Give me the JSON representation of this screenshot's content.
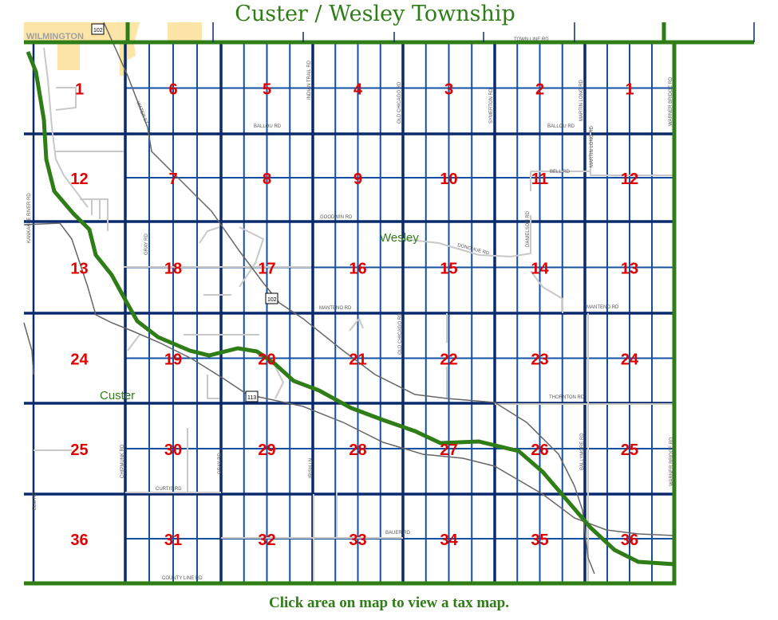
{
  "title": "Custer / Wesley Township",
  "footer": "Click area on map to view a tax map.",
  "colors": {
    "boundary": "#2e7d16",
    "section_label": "#e00000",
    "major_road": "#0a2a6e",
    "quarter_line": "#1450a0",
    "local_road": "#c8c8c8",
    "railroad": "#666666",
    "city_area": "#fde5a8"
  },
  "towns": {
    "wilmington": "WILMINGTON",
    "wesley": "Wesley",
    "custer": "Custer"
  },
  "highways": [
    "102",
    "102",
    "113"
  ],
  "roads": {
    "town_line": "TOWN LINE RD",
    "ballou_w": "BALLOU RD",
    "ballou_e": "BALLOU RD",
    "indian_trail": "INDIAN TRAIL RD",
    "old_chicago_n": "OLD CHICAGO RD",
    "symerton": "SYMERTON RD",
    "martin_long_n": "MARTIN LONG RD",
    "martin_long_s": "MARTIN LONG RD",
    "warner_bridge_n": "WARNER BRIDGE RD",
    "bell": "BELL RD",
    "goodwin": "GOODWIN RD",
    "donohue": "DONOHUE RD",
    "danielson": "DANIELSON RD",
    "kankakee_river": "KANKAKEE RIVER RD",
    "gray_rd_n": "GRAY RD",
    "water_st": "WATER ST",
    "manteno_w": "MANTENO RD",
    "manteno_e": "MANTENO RD",
    "old_chicago_s": "OLD CHICAGO RD",
    "thornton": "THORNTON RD",
    "chipmunk": "CHIPMUNK RD",
    "gray_rd_s": "GRAY RD",
    "irish_ln": "IRISH LN",
    "curtis": "CURTIS RD",
    "county_line": "COUNTY LINE RD",
    "bauer": "BAUER RD",
    "ballymore": "BALLYMORE RD",
    "warner_bridge_s": "WARNER BRIDGE RD",
    "elm": "ELM RD"
  },
  "sections": [
    [
      "1",
      "6",
      "5",
      "4",
      "3",
      "2",
      "1"
    ],
    [
      "12",
      "7",
      "8",
      "9",
      "10",
      "11",
      "12"
    ],
    [
      "13",
      "18",
      "17",
      "16",
      "15",
      "14",
      "13"
    ],
    [
      "24",
      "19",
      "20",
      "21",
      "22",
      "23",
      "24"
    ],
    [
      "25",
      "30",
      "29",
      "28",
      "27",
      "26",
      "25"
    ],
    [
      "36",
      "31",
      "32",
      "33",
      "34",
      "35",
      "36"
    ]
  ]
}
